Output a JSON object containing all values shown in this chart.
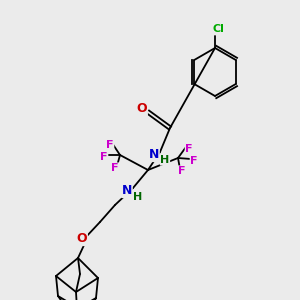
{
  "background_color": "#ebebeb",
  "bond_color": "#000000",
  "atom_colors": {
    "N": "#0000cc",
    "O": "#cc0000",
    "F": "#cc00cc",
    "Cl": "#00aa00",
    "H": "#006600",
    "C": "#000000"
  }
}
